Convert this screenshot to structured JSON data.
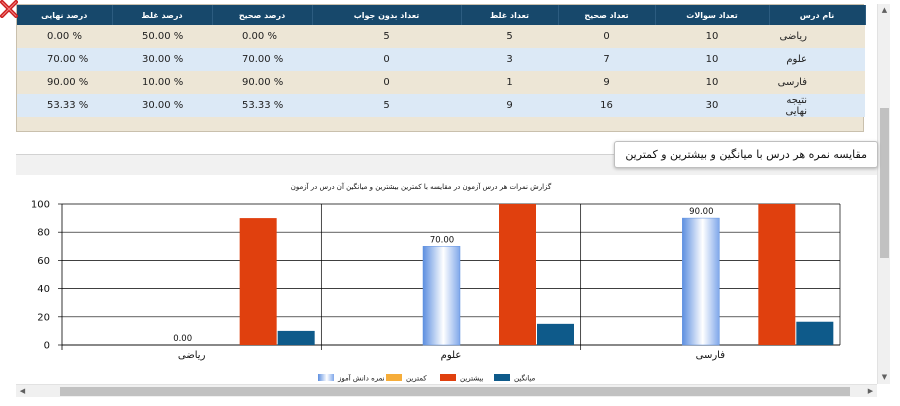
{
  "table": {
    "headers": [
      "نام درس",
      "تعداد سوالات",
      "تعداد صحیح",
      "تعداد غلط",
      "تعداد بدون جواب",
      "درصد صحیح",
      "درصد غلط",
      "درصد نهایی"
    ],
    "rows": [
      [
        "ریاضی",
        "10",
        "0",
        "5",
        "5",
        "0.00 %",
        "50.00 %",
        "0.00 %"
      ],
      [
        "علوم",
        "10",
        "7",
        "3",
        "0",
        "70.00 %",
        "30.00 %",
        "70.00 %"
      ],
      [
        "فارسی",
        "10",
        "9",
        "1",
        "0",
        "90.00 %",
        "10.00 %",
        "90.00 %"
      ],
      [
        "نتیجه نهایی",
        "30",
        "16",
        "9",
        "5",
        "53.33 %",
        "30.00 %",
        "53.33 %"
      ]
    ]
  },
  "chart_tab": "مقایسه نمره هر درس با میانگین و بیشترین و کمترین",
  "colors": {
    "header": "#17486b",
    "student": "#6f9be6",
    "min": "#f6ad3a",
    "max": "#e0400e",
    "avg": "#0e5a8a"
  },
  "scrollbar": {
    "up": "▲",
    "down": "▼",
    "left": "◀",
    "right": "▶"
  },
  "chart_data": {
    "type": "bar",
    "title": "گزارش نمرات هر درس آزمون در مقایسه با کمترین بیشترین و میانگین آن درس در آزمون",
    "categories": [
      "ریاضی",
      "علوم",
      "فارسی"
    ],
    "ylim": [
      0,
      100
    ],
    "yticks": [
      0,
      20,
      40,
      60,
      80,
      100
    ],
    "grid": true,
    "legend_position": "bottom",
    "series": [
      {
        "name": "نمره دانش آموز",
        "values": [
          0,
          70,
          90
        ],
        "labels": [
          "0.00",
          "70.00",
          "90.00"
        ]
      },
      {
        "name": "کمترین",
        "values": [
          0,
          0,
          0
        ]
      },
      {
        "name": "بیشترین",
        "values": [
          90,
          100,
          100
        ]
      },
      {
        "name": "میانگین",
        "values": [
          10,
          15,
          16.5
        ]
      }
    ]
  }
}
